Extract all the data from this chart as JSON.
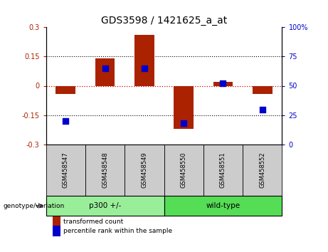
{
  "title": "GDS3598 / 1421625_a_at",
  "samples": [
    "GSM458547",
    "GSM458548",
    "GSM458549",
    "GSM458550",
    "GSM458551",
    "GSM458552"
  ],
  "red_bars": [
    -0.04,
    0.14,
    0.26,
    -0.22,
    0.02,
    -0.04
  ],
  "blue_dots": [
    20,
    65,
    65,
    18,
    52,
    30
  ],
  "ylim_left": [
    -0.3,
    0.3
  ],
  "ylim_right": [
    0,
    100
  ],
  "yticks_left": [
    -0.3,
    -0.15,
    0,
    0.15,
    0.3
  ],
  "yticks_right": [
    0,
    25,
    50,
    75,
    100
  ],
  "ytick_labels_left": [
    "-0.3",
    "-0.15",
    "0",
    "0.15",
    "0.3"
  ],
  "ytick_labels_right": [
    "0",
    "25",
    "50",
    "75",
    "100%"
  ],
  "hlines": [
    0.15,
    -0.15
  ],
  "zero_line": 0,
  "bar_color": "#aa2200",
  "dot_color": "#0000cc",
  "groups": [
    {
      "label": "p300 +/-",
      "samples": [
        0,
        1,
        2
      ],
      "color": "#99ee99"
    },
    {
      "label": "wild-type",
      "samples": [
        3,
        4,
        5
      ],
      "color": "#55dd55"
    }
  ],
  "group_label": "genotype/variation",
  "legend_red": "transformed count",
  "legend_blue": "percentile rank within the sample",
  "bar_width": 0.5,
  "dot_size": 30,
  "background_plot": "#ffffff",
  "background_label": "#cccccc",
  "zero_line_color": "#cc0000",
  "title_fontsize": 10
}
